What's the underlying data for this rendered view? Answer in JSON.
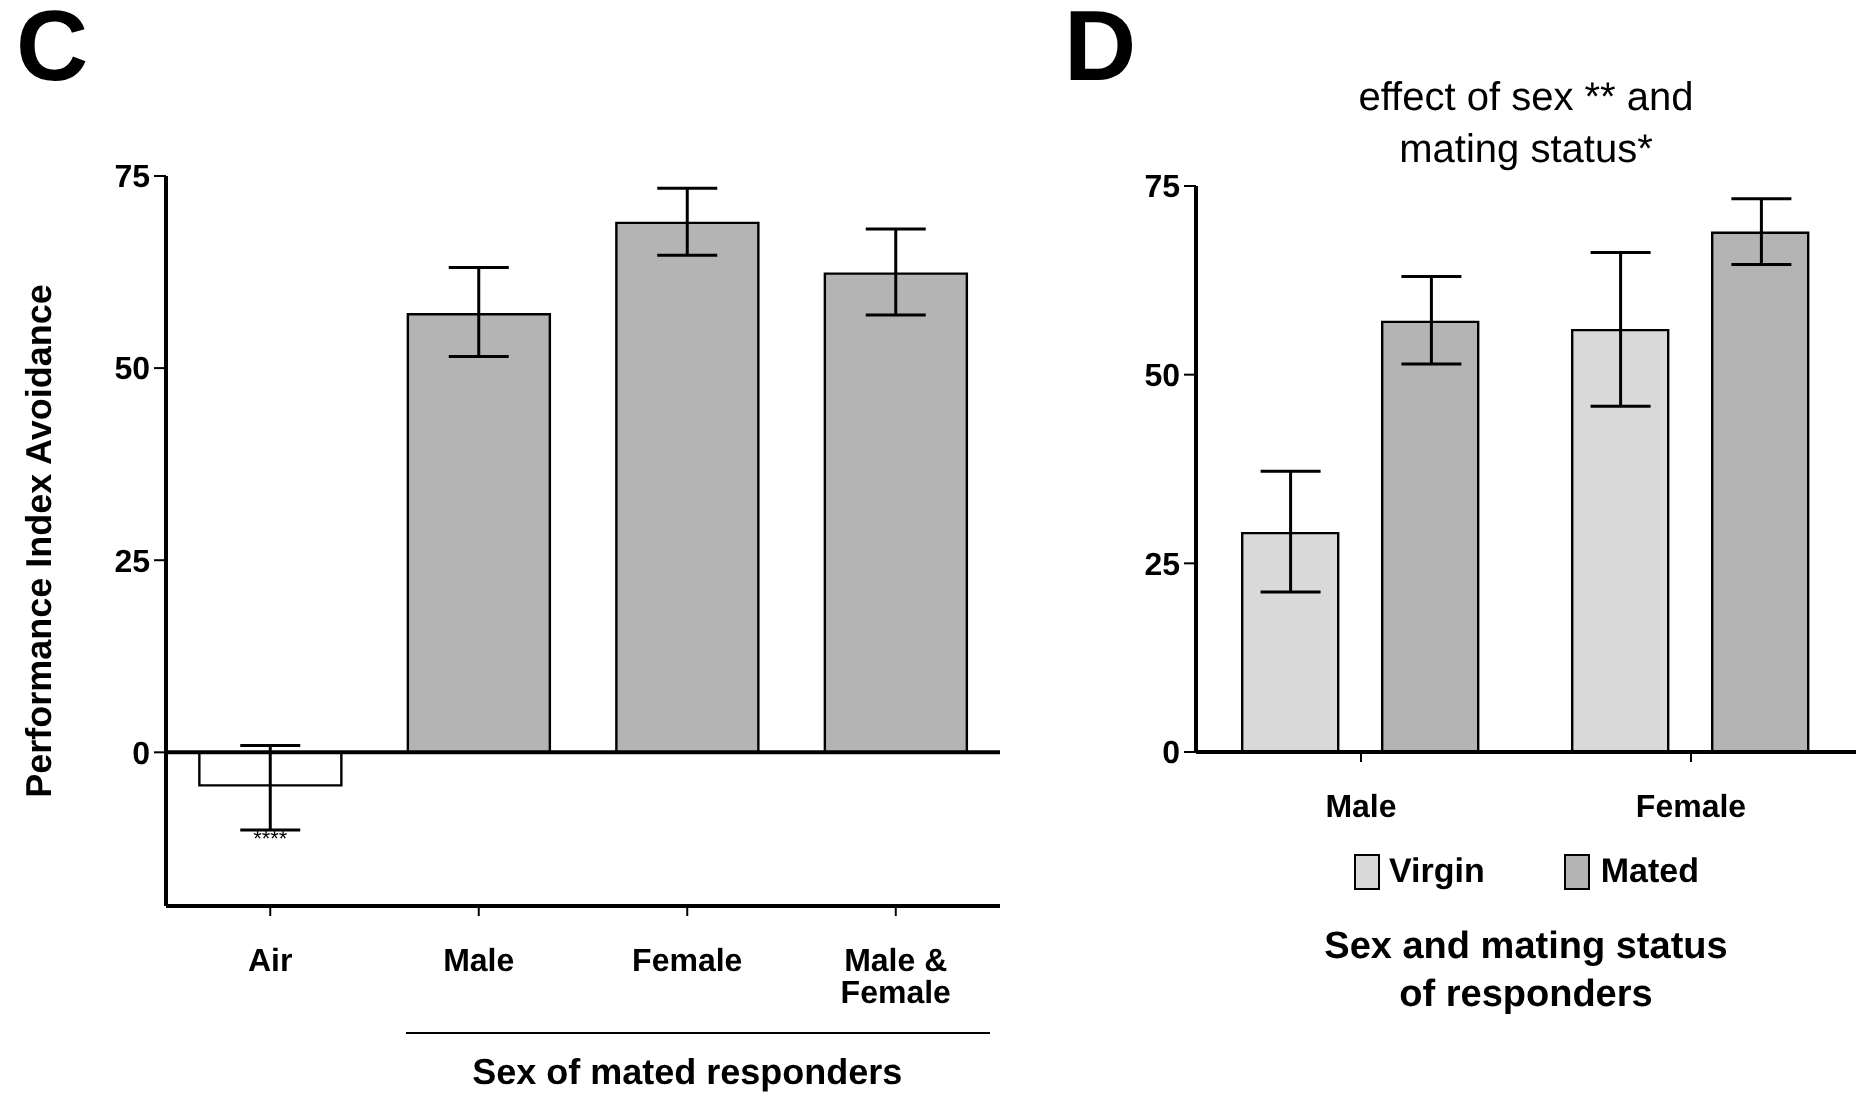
{
  "chart_data": [
    {
      "type": "bar",
      "title": "C",
      "categories": [
        "Air",
        "Male",
        "Female",
        "Male & Female"
      ],
      "values": [
        -4.3,
        57,
        68.9,
        62.3
      ],
      "colors": [
        "#ffffff",
        "#b4b4b4",
        "#b4b4b4",
        "#b4b4b4"
      ],
      "errors": [
        [
          -10.1,
          0.9
        ],
        [
          51.5,
          63.1
        ],
        [
          64.7,
          73.4
        ],
        [
          56.9,
          68.1
        ]
      ],
      "ylim": [
        -20,
        75
      ],
      "yticks": [
        0,
        25,
        50,
        75
      ],
      "ylabel": "Performance Index Avoidance",
      "xlabel": "Sex of mated responders",
      "annotations": [
        "****"
      ]
    },
    {
      "type": "bar",
      "title": "D",
      "subtitle": "effect of sex ** and mating status*",
      "categories": [
        "Male",
        "Female"
      ],
      "series": [
        {
          "name": "Virgin",
          "color": "#d9d9d9",
          "values": [
            29,
            55.9
          ],
          "errors": [
            [
              21.2,
              37.2
            ],
            [
              45.8,
              66.2
            ]
          ]
        },
        {
          "name": "Mated",
          "color": "#b4b4b4",
          "values": [
            57,
            68.8
          ],
          "errors": [
            [
              51.4,
              63
            ],
            [
              64.6,
              73.3
            ]
          ]
        }
      ],
      "ylim": [
        0,
        75
      ],
      "yticks": [
        0,
        25,
        50,
        75
      ],
      "xlabel": "Sex and mating status of responders",
      "legend": "bottom"
    }
  ]
}
